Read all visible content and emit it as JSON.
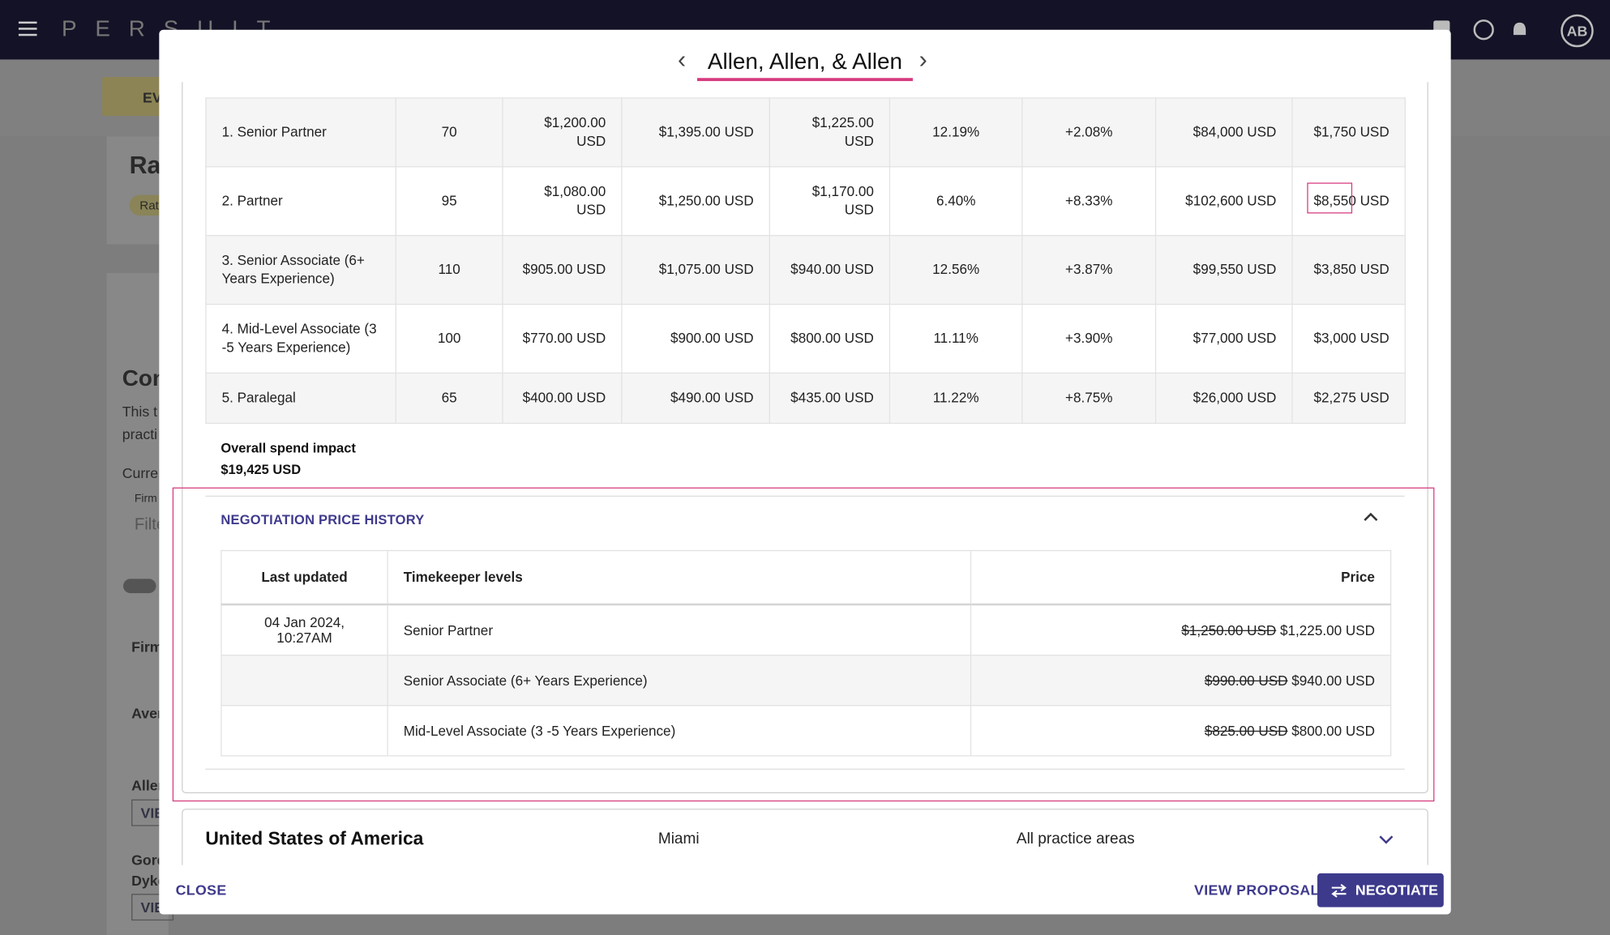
{
  "app": {
    "logo": "PERSUIT",
    "avatar": "AB"
  },
  "background": {
    "chip": "EV",
    "heading": "Ra",
    "tag": "Rat",
    "section": "Con",
    "line1": "This t",
    "line2": "practi",
    "current": "Curre",
    "input_label": "Firm",
    "input_placeholder": "Filte",
    "firm": "Firm",
    "avg": "Aver",
    "firm1": "Aller",
    "view1": "VIE",
    "firm2a": "Gord",
    "firm2b": "Dyke",
    "view2": "VIE"
  },
  "modal": {
    "title": "Allen, Allen, & Allen",
    "rates": {
      "rows": [
        [
          "1. Senior Partner",
          "70",
          "$1,200.00 USD",
          "$1,395.00 USD",
          "$1,225.00 USD",
          "12.19%",
          "+2.08%",
          "$84,000 USD",
          "$1,750 USD"
        ],
        [
          "2. Partner",
          "95",
          "$1,080.00 USD",
          "$1,250.00 USD",
          "$1,170.00 USD",
          "6.40%",
          "+8.33%",
          "$102,600 USD",
          "$8,550 USD"
        ],
        [
          "3. Senior Associate (6+ Years Experience)",
          "110",
          "$905.00 USD",
          "$1,075.00 USD",
          "$940.00 USD",
          "12.56%",
          "+3.87%",
          "$99,550 USD",
          "$3,850 USD"
        ],
        [
          "4. Mid-Level Associate (3 -5 Years Experience)",
          "100",
          "$770.00 USD",
          "$900.00 USD",
          "$800.00 USD",
          "11.11%",
          "+3.90%",
          "$77,000 USD",
          "$3,000 USD"
        ],
        [
          "5. Paralegal",
          "65",
          "$400.00 USD",
          "$490.00 USD",
          "$435.00 USD",
          "11.22%",
          "+8.75%",
          "$26,000 USD",
          "$2,275 USD"
        ]
      ]
    },
    "overall": {
      "label": "Overall spend impact",
      "value": "$19,425 USD"
    },
    "history": {
      "title": "NEGOTIATION PRICE HISTORY",
      "headers": [
        "Last updated",
        "Timekeeper levels",
        "Price"
      ],
      "rows": [
        {
          "date": "04 Jan 2024, 10:27AM",
          "level": "Senior Partner",
          "old": "$1,250.00 USD",
          "new": "$1,225.00 USD"
        },
        {
          "level": "Senior Associate (6+ Years Experience)",
          "old": "$990.00 USD",
          "new": "$940.00 USD"
        },
        {
          "level": "Mid-Level Associate (3 -5 Years Experience)",
          "old": "$825.00 USD",
          "new": "$800.00 USD"
        }
      ]
    },
    "region": {
      "country": "United States of America",
      "city": "Miami",
      "practice": "All practice areas"
    },
    "footer": {
      "close": "CLOSE",
      "view": "VIEW PROPOSAL",
      "negotiate": "NEGOTIATE"
    }
  }
}
